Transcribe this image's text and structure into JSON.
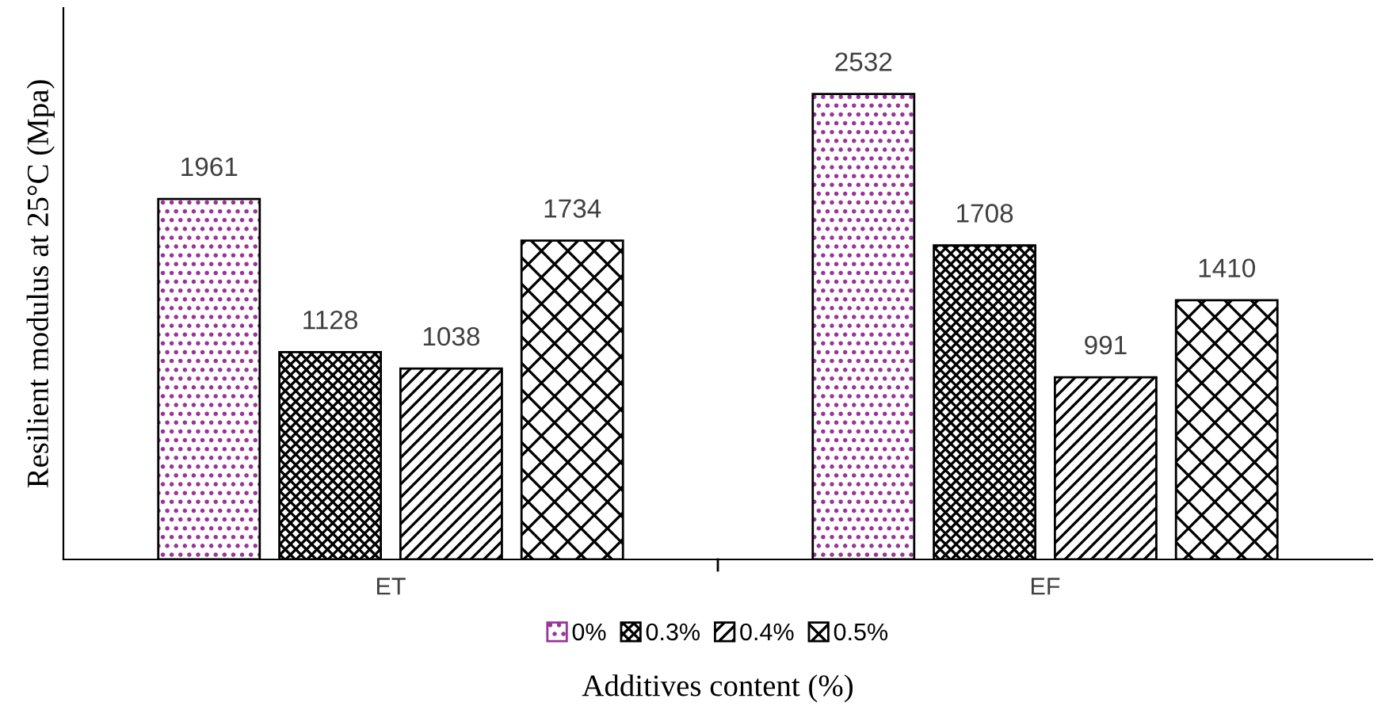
{
  "chart_data": {
    "type": "bar",
    "xlabel": "Additives content (%)",
    "ylabel": "Resilient modulus at 25°C (Mpa)",
    "categories": [
      "ET",
      "EF"
    ],
    "series": [
      {
        "name": "0%",
        "color": "#993399",
        "values": [
          1961,
          2532
        ]
      },
      {
        "name": "0.3%",
        "color": "#000000",
        "values": [
          1128,
          1708
        ]
      },
      {
        "name": "0.4%",
        "color": "#000000",
        "values": [
          1038,
          991
        ]
      },
      {
        "name": "0.5%",
        "color": "#000000",
        "values": [
          1734,
          1410
        ]
      }
    ],
    "ylim": [
      0,
      3000
    ],
    "tick_labels": "x",
    "data_labels": true,
    "grid": false,
    "legend": "bottom"
  }
}
